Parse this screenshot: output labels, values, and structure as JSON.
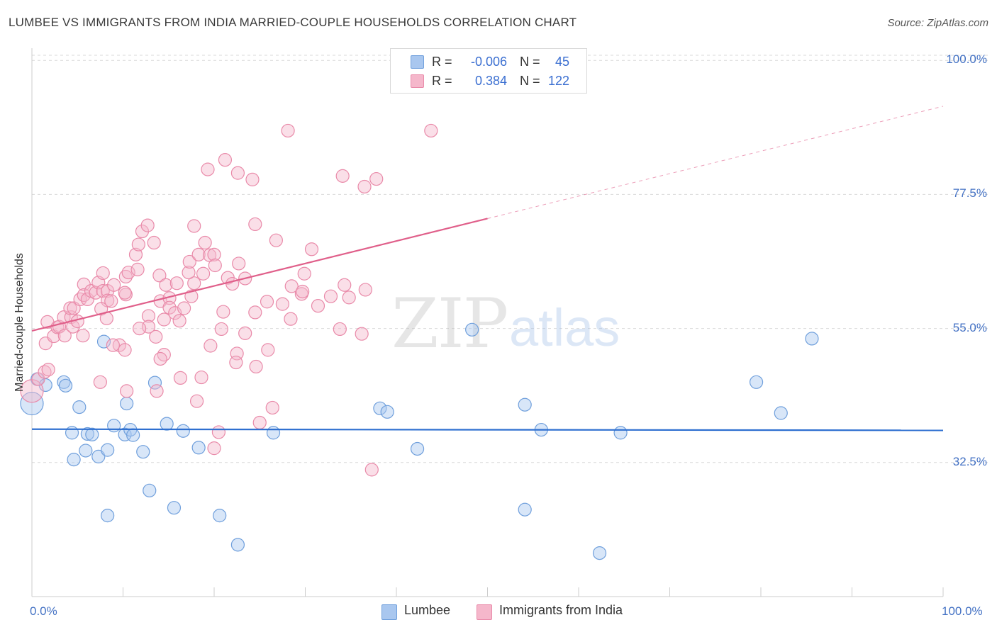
{
  "title": "LUMBEE VS IMMIGRANTS FROM INDIA MARRIED-COUPLE HOUSEHOLDS CORRELATION CHART",
  "source": "Source: ZipAtlas.com",
  "watermark": {
    "zip": "ZIP",
    "atlas": "atlas"
  },
  "colors": {
    "blue_fill": "#a9c7ef",
    "blue_stroke": "#6f9fdc",
    "blue_line": "#2e6fd0",
    "pink_fill": "#f5b7cb",
    "pink_stroke": "#e98aa9",
    "pink_line": "#e05f8a",
    "tick_text": "#4472c4",
    "grid": "#d9d9d9"
  },
  "legend": {
    "rows": [
      {
        "r_label": "R =",
        "r_value": "-0.006",
        "n_label": "N =",
        "n_value": "45"
      },
      {
        "r_label": "R =",
        "r_value": "0.384",
        "n_label": "N =",
        "n_value": "122"
      }
    ]
  },
  "bottom_legend": {
    "series1": "Lumbee",
    "series2": "Immigrants from India"
  },
  "chart_data": {
    "type": "scatter",
    "title": "LUMBEE VS IMMIGRANTS FROM INDIA MARRIED-COUPLE HOUSEHOLDS CORRELATION CHART",
    "xlabel": "",
    "ylabel": "Married-couple Households",
    "xlim": [
      0,
      100
    ],
    "ylim": [
      10,
      103
    ],
    "y_ticks": [
      {
        "value": 100,
        "label": "100.0%"
      },
      {
        "value": 77.5,
        "label": "77.5%"
      },
      {
        "value": 55,
        "label": "55.0%"
      },
      {
        "value": 32.5,
        "label": "32.5%"
      }
    ],
    "x_ticks": [
      {
        "value": 0,
        "label": "0.0%"
      },
      {
        "value": 100,
        "label": "100.0%"
      }
    ],
    "grid": true,
    "series": [
      {
        "name": "Lumbee",
        "r": -0.006,
        "n": 45,
        "trend": {
          "x0": 0,
          "y0": 38.1,
          "x1": 100,
          "y1": 37.9,
          "dashed_from": null
        },
        "points": [
          [
            0,
            42.4,
            2
          ],
          [
            0.6,
            46.5,
            1
          ],
          [
            1.5,
            45.5,
            1
          ],
          [
            3.5,
            46,
            1
          ],
          [
            3.7,
            45.4,
            1
          ],
          [
            5.2,
            41.8,
            1
          ],
          [
            4.4,
            37.5,
            1
          ],
          [
            6.1,
            37.3,
            1
          ],
          [
            6.6,
            37.2,
            1
          ],
          [
            5.9,
            34.5,
            1
          ],
          [
            4.6,
            33,
            1
          ],
          [
            7.3,
            33.5,
            1
          ],
          [
            8.3,
            34.6,
            1
          ],
          [
            9,
            38.7,
            1
          ],
          [
            10.2,
            37.2,
            1
          ],
          [
            10.8,
            38,
            1
          ],
          [
            11.1,
            37.1,
            1
          ],
          [
            12.2,
            34.3,
            1
          ],
          [
            10.4,
            42.4,
            1
          ],
          [
            13.5,
            45.9,
            1
          ],
          [
            14.8,
            39,
            1
          ],
          [
            16.6,
            37.8,
            1
          ],
          [
            18.3,
            35,
            1
          ],
          [
            12.9,
            27.8,
            1
          ],
          [
            7.9,
            52.8,
            1
          ],
          [
            8.3,
            23.6,
            1
          ],
          [
            15.6,
            24.9,
            1
          ],
          [
            20.6,
            23.6,
            1
          ],
          [
            22.6,
            18.7,
            1
          ],
          [
            26.5,
            37.5,
            1
          ],
          [
            38.2,
            41.6,
            1
          ],
          [
            39,
            41,
            1
          ],
          [
            42.3,
            34.8,
            1
          ],
          [
            48.3,
            54.8,
            1
          ],
          [
            54.1,
            42.2,
            1
          ],
          [
            55.9,
            38,
            1
          ],
          [
            54.1,
            24.6,
            1
          ],
          [
            64.6,
            37.5,
            1
          ],
          [
            62.3,
            17.3,
            1
          ],
          [
            79.5,
            46,
            1
          ],
          [
            82.2,
            40.8,
            1
          ],
          [
            85.6,
            53.3,
            1
          ]
        ]
      },
      {
        "name": "Immigrants from India",
        "r": 0.384,
        "n": 122,
        "trend": {
          "x0": 0,
          "y0": 54.6,
          "x1": 100,
          "y1": 92.3,
          "dashed_from": 50
        },
        "points": [
          [
            0,
            44.5,
            2
          ],
          [
            0.7,
            46.5,
            1
          ],
          [
            1.4,
            47.7,
            1
          ],
          [
            1.8,
            48.1,
            1
          ],
          [
            1.5,
            52.5,
            1
          ],
          [
            1.7,
            56.1,
            1
          ],
          [
            2.4,
            53.7,
            1
          ],
          [
            2.8,
            55.2,
            1
          ],
          [
            3,
            55.3,
            1
          ],
          [
            3.6,
            53.8,
            1
          ],
          [
            3.5,
            56.9,
            1
          ],
          [
            4.3,
            56.9,
            1
          ],
          [
            4.5,
            55.3,
            1
          ],
          [
            5,
            56.2,
            1
          ],
          [
            4.2,
            58.4,
            1
          ],
          [
            4.6,
            58.4,
            1
          ],
          [
            5.3,
            59.9,
            1
          ],
          [
            5.7,
            62.4,
            1
          ],
          [
            5.7,
            60.6,
            1
          ],
          [
            6.1,
            59.9,
            1
          ],
          [
            6.5,
            61.3,
            1
          ],
          [
            7,
            61,
            1
          ],
          [
            7.3,
            62.7,
            1
          ],
          [
            7.8,
            61.3,
            1
          ],
          [
            7.8,
            64.3,
            1
          ],
          [
            8.3,
            61.3,
            1
          ],
          [
            8.3,
            59.7,
            1
          ],
          [
            7.6,
            58.3,
            1
          ],
          [
            8.2,
            56.7,
            1
          ],
          [
            8.7,
            59.6,
            1
          ],
          [
            9,
            62.3,
            1
          ],
          [
            10.3,
            60.7,
            1
          ],
          [
            10.2,
            61,
            1
          ],
          [
            10.3,
            63.7,
            1
          ],
          [
            10.6,
            64.4,
            1
          ],
          [
            11.6,
            64.9,
            1
          ],
          [
            11.4,
            67.4,
            1
          ],
          [
            11.7,
            69.1,
            1
          ],
          [
            12.1,
            71.3,
            1
          ],
          [
            12.7,
            72.3,
            1
          ],
          [
            13.4,
            69.4,
            1
          ],
          [
            14,
            63.9,
            1
          ],
          [
            14.1,
            59.6,
            1
          ],
          [
            14.7,
            62.3,
            1
          ],
          [
            15.1,
            60.1,
            1
          ],
          [
            15.9,
            62.6,
            1
          ],
          [
            15.1,
            58.5,
            1
          ],
          [
            15.7,
            57.6,
            1
          ],
          [
            16.7,
            58.4,
            1
          ],
          [
            17.8,
            62.6,
            1
          ],
          [
            17.5,
            60.4,
            1
          ],
          [
            17.2,
            64.4,
            1
          ],
          [
            17.3,
            66.2,
            1
          ],
          [
            18.3,
            67.4,
            1
          ],
          [
            18.8,
            64.2,
            1
          ],
          [
            19.5,
            67.3,
            1
          ],
          [
            20,
            67.4,
            1
          ],
          [
            20.1,
            65.6,
            1
          ],
          [
            21.5,
            63.5,
            1
          ],
          [
            22,
            62.5,
            1
          ],
          [
            22.7,
            65.9,
            1
          ],
          [
            17.8,
            72.2,
            1
          ],
          [
            19,
            69.4,
            1
          ],
          [
            19.3,
            81.7,
            1
          ],
          [
            21.2,
            83.3,
            1
          ],
          [
            22.6,
            81.1,
            1
          ],
          [
            24.2,
            80,
            1
          ],
          [
            24.5,
            72.5,
            1
          ],
          [
            24.5,
            57.7,
            1
          ],
          [
            25.8,
            59.5,
            1
          ],
          [
            27.5,
            59.1,
            1
          ],
          [
            28.5,
            62.1,
            1
          ],
          [
            28.4,
            56.6,
            1
          ],
          [
            29.6,
            60.8,
            1
          ],
          [
            31.4,
            58.8,
            1
          ],
          [
            29.7,
            61.2,
            1
          ],
          [
            29.9,
            64.2,
            1
          ],
          [
            30.7,
            68.3,
            1
          ],
          [
            32.8,
            60.4,
            1
          ],
          [
            33.8,
            54.9,
            1
          ],
          [
            34.3,
            62.3,
            1
          ],
          [
            34.8,
            60.2,
            1
          ],
          [
            36.6,
            61.5,
            1
          ],
          [
            36.2,
            54.1,
            1
          ],
          [
            37.8,
            80.1,
            1
          ],
          [
            36.5,
            78.8,
            1
          ],
          [
            34.1,
            80.6,
            1
          ],
          [
            28.1,
            88.2,
            1
          ],
          [
            43.8,
            88.2,
            1
          ],
          [
            26.8,
            69.8,
            1
          ],
          [
            23.4,
            54.2,
            1
          ],
          [
            23.4,
            63.4,
            1
          ],
          [
            21,
            57.8,
            1
          ],
          [
            20.8,
            54.9,
            1
          ],
          [
            19.6,
            52.1,
            1
          ],
          [
            18.6,
            46.8,
            1
          ],
          [
            18.1,
            42.8,
            1
          ],
          [
            22.5,
            50.8,
            1
          ],
          [
            22.4,
            49.3,
            1
          ],
          [
            24.6,
            48.6,
            1
          ],
          [
            25.9,
            51.4,
            1
          ],
          [
            26.4,
            41.7,
            1
          ],
          [
            25,
            39.2,
            1
          ],
          [
            20.5,
            37.6,
            1
          ],
          [
            20,
            34.9,
            1
          ],
          [
            16.3,
            46.7,
            1
          ],
          [
            16.2,
            56.3,
            1
          ],
          [
            14.5,
            50.6,
            1
          ],
          [
            13.6,
            53.6,
            1
          ],
          [
            14.1,
            49.9,
            1
          ],
          [
            14.5,
            56.5,
            1
          ],
          [
            12.8,
            57.1,
            1
          ],
          [
            12.8,
            55.3,
            1
          ],
          [
            11.8,
            55,
            1
          ],
          [
            10.4,
            44.5,
            1
          ],
          [
            9.6,
            52.2,
            1
          ],
          [
            10.2,
            51.4,
            1
          ],
          [
            13.7,
            44.5,
            1
          ],
          [
            8.9,
            52.2,
            1
          ],
          [
            7.5,
            46,
            1
          ],
          [
            5.6,
            53.8,
            1
          ],
          [
            37.3,
            31.3,
            1
          ]
        ]
      }
    ]
  }
}
